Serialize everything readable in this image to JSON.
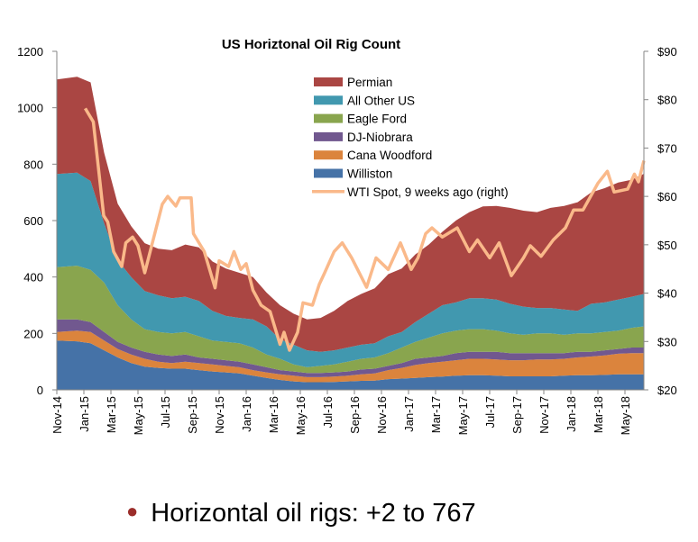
{
  "chart_data": {
    "type": "area",
    "stacked": true,
    "title": "US Horiztonal Oil Rig Count",
    "xlabel": "",
    "ylabel": "",
    "ylim": [
      0,
      1200
    ],
    "y_ticks": [
      "0",
      "200",
      "400",
      "600",
      "800",
      "1000",
      "1200"
    ],
    "y2lim": [
      20,
      90
    ],
    "y2_ticks": [
      "$20",
      "$30",
      "$40",
      "$50",
      "$60",
      "$70",
      "$80",
      "$90"
    ],
    "x_tick_labels": [
      "Nov-14",
      "Jan-15",
      "Mar-15",
      "May-15",
      "Jul-15",
      "Sep-15",
      "Nov-15",
      "Jan-16",
      "Mar-16",
      "May-16",
      "Jul-16",
      "Sep-16",
      "Nov-16",
      "Jan-17",
      "Mar-17",
      "May-17",
      "Jul-17",
      "Sep-17",
      "Nov-17",
      "Jan-18",
      "Mar-18",
      "May-18"
    ],
    "grid": false,
    "legend_placement": "top-center-right",
    "x": [
      "2014-11",
      "2014-12",
      "2015-01",
      "2015-02",
      "2015-03",
      "2015-04",
      "2015-05",
      "2015-06",
      "2015-07",
      "2015-08",
      "2015-09",
      "2015-10",
      "2015-11",
      "2015-12",
      "2016-01",
      "2016-02",
      "2016-03",
      "2016-04",
      "2016-05",
      "2016-06",
      "2016-07",
      "2016-08",
      "2016-09",
      "2016-10",
      "2016-11",
      "2016-12",
      "2017-01",
      "2017-02",
      "2017-03",
      "2017-04",
      "2017-05",
      "2017-06",
      "2017-07",
      "2017-08",
      "2017-09",
      "2017-10",
      "2017-11",
      "2017-12",
      "2018-01",
      "2018-02",
      "2018-03",
      "2018-04",
      "2018-05",
      "2018-06"
    ],
    "series": [
      {
        "name": "Williston",
        "color": "#4572A7",
        "values": [
          175,
          172,
          165,
          140,
          115,
          95,
          82,
          78,
          75,
          75,
          70,
          65,
          62,
          58,
          50,
          42,
          35,
          30,
          27,
          27,
          28,
          30,
          32,
          33,
          38,
          40,
          42,
          45,
          47,
          50,
          52,
          52,
          50,
          48,
          48,
          48,
          48,
          50,
          52,
          52,
          53,
          55,
          55,
          55
        ]
      },
      {
        "name": "Cana Woodford",
        "color": "#DB843D",
        "values": [
          30,
          38,
          40,
          35,
          30,
          30,
          28,
          22,
          20,
          25,
          25,
          25,
          23,
          22,
          20,
          20,
          20,
          20,
          18,
          18,
          19,
          20,
          23,
          25,
          32,
          38,
          46,
          50,
          53,
          55,
          58,
          58,
          58,
          57,
          57,
          60,
          60,
          60,
          63,
          66,
          69,
          73,
          75,
          75
        ]
      },
      {
        "name": "DJ-Niobrara",
        "color": "#71588F",
        "values": [
          45,
          40,
          35,
          30,
          25,
          25,
          25,
          25,
          25,
          25,
          20,
          20,
          20,
          20,
          20,
          18,
          15,
          15,
          15,
          15,
          15,
          15,
          17,
          17,
          15,
          17,
          22,
          20,
          20,
          25,
          25,
          25,
          27,
          25,
          25,
          22,
          22,
          20,
          20,
          17,
          18,
          17,
          20,
          20
        ]
      },
      {
        "name": "Eagle Ford",
        "color": "#89A54E",
        "values": [
          185,
          190,
          185,
          175,
          130,
          100,
          80,
          80,
          80,
          80,
          75,
          65,
          65,
          65,
          60,
          45,
          40,
          25,
          20,
          25,
          28,
          35,
          38,
          40,
          45,
          55,
          60,
          70,
          80,
          80,
          80,
          80,
          75,
          70,
          65,
          70,
          70,
          65,
          65,
          65,
          65,
          65,
          70,
          75
        ]
      },
      {
        "name": "All Other US",
        "color": "#4198AF",
        "values": [
          330,
          330,
          315,
          210,
          160,
          150,
          135,
          130,
          125,
          125,
          125,
          105,
          92,
          90,
          100,
          100,
          70,
          70,
          60,
          50,
          50,
          50,
          50,
          50,
          60,
          55,
          70,
          85,
          100,
          100,
          110,
          110,
          110,
          105,
          100,
          90,
          90,
          90,
          80,
          105,
          105,
          110,
          110,
          115
        ]
      },
      {
        "name": "Permian",
        "color": "#AA4643",
        "values": [
          335,
          340,
          350,
          250,
          200,
          180,
          170,
          165,
          170,
          185,
          190,
          175,
          168,
          160,
          150,
          120,
          120,
          110,
          110,
          120,
          140,
          165,
          180,
          195,
          220,
          225,
          240,
          245,
          260,
          290,
          305,
          325,
          332,
          340,
          340,
          340,
          355,
          367,
          385,
          395,
          405,
          415,
          415,
          426
        ]
      }
    ],
    "line_series": {
      "name": "WTI Spot, 9 weeks ago (right)",
      "axis": "right",
      "color": "#FAB98A",
      "points": [
        [
          "2015-01-04",
          78.2
        ],
        [
          "2015-01-22",
          75.4
        ],
        [
          "2015-02-15",
          56
        ],
        [
          "2015-02-24",
          54.7
        ],
        [
          "2015-03-07",
          48.6
        ],
        [
          "2015-03-25",
          45.5
        ],
        [
          "2015-04-04",
          50.4
        ],
        [
          "2015-04-19",
          51.6
        ],
        [
          "2015-05-01",
          49.8
        ],
        [
          "2015-05-16",
          44.2
        ],
        [
          "2015-05-28",
          48.6
        ],
        [
          "2015-06-25",
          58.4
        ],
        [
          "2015-07-07",
          60
        ],
        [
          "2015-07-25",
          58
        ],
        [
          "2015-08-04",
          59.7
        ],
        [
          "2015-08-29",
          59.7
        ],
        [
          "2015-09-04",
          52.3
        ],
        [
          "2015-09-28",
          48.6
        ],
        [
          "2015-10-22",
          41.1
        ],
        [
          "2015-11-01",
          46.7
        ],
        [
          "2015-11-22",
          45.5
        ],
        [
          "2015-12-04",
          48.6
        ],
        [
          "2015-12-19",
          44.9
        ],
        [
          "2016-01-01",
          46.1
        ],
        [
          "2016-01-16",
          40.6
        ],
        [
          "2016-02-04",
          37.5
        ],
        [
          "2016-02-24",
          36.2
        ],
        [
          "2016-03-16",
          29.4
        ],
        [
          "2016-03-25",
          31.9
        ],
        [
          "2016-04-07",
          28.2
        ],
        [
          "2016-04-25",
          31.9
        ],
        [
          "2016-05-07",
          38
        ],
        [
          "2016-05-28",
          37.5
        ],
        [
          "2016-06-13",
          41.8
        ],
        [
          "2016-06-25",
          44.2
        ],
        [
          "2016-07-16",
          48.6
        ],
        [
          "2016-08-04",
          50.4
        ],
        [
          "2016-08-25",
          47.3
        ],
        [
          "2016-09-28",
          41.2
        ],
        [
          "2016-10-19",
          47.3
        ],
        [
          "2016-11-16",
          44.9
        ],
        [
          "2016-12-13",
          50.4
        ],
        [
          "2017-01-07",
          44.9
        ],
        [
          "2017-01-22",
          47.3
        ],
        [
          "2017-02-09",
          52.3
        ],
        [
          "2017-02-23",
          53.5
        ],
        [
          "2017-03-16",
          51.6
        ],
        [
          "2017-04-19",
          53.5
        ],
        [
          "2017-05-16",
          48.6
        ],
        [
          "2017-06-04",
          51
        ],
        [
          "2017-07-01",
          47.3
        ],
        [
          "2017-07-22",
          50.4
        ],
        [
          "2017-08-19",
          43.6
        ],
        [
          "2017-09-16",
          47.3
        ],
        [
          "2017-10-01",
          49.8
        ],
        [
          "2017-10-25",
          47.6
        ],
        [
          "2017-11-22",
          51
        ],
        [
          "2017-12-19",
          53.5
        ],
        [
          "2018-01-07",
          57.2
        ],
        [
          "2018-01-28",
          57.2
        ],
        [
          "2018-03-01",
          62.7
        ],
        [
          "2018-03-22",
          65.2
        ],
        [
          "2018-04-07",
          60.9
        ],
        [
          "2018-05-07",
          61.5
        ],
        [
          "2018-05-22",
          64.6
        ],
        [
          "2018-06-01",
          63
        ],
        [
          "2018-06-16",
          67.4
        ]
      ]
    },
    "legend_order": [
      "Permian",
      "All Other US",
      "Eagle Ford",
      "DJ-Niobrara",
      "Cana Woodford",
      "Williston",
      "WTI Spot, 9 weeks ago (right)"
    ]
  },
  "bullet_text": "Horizontal oil rigs: +2 to 767"
}
